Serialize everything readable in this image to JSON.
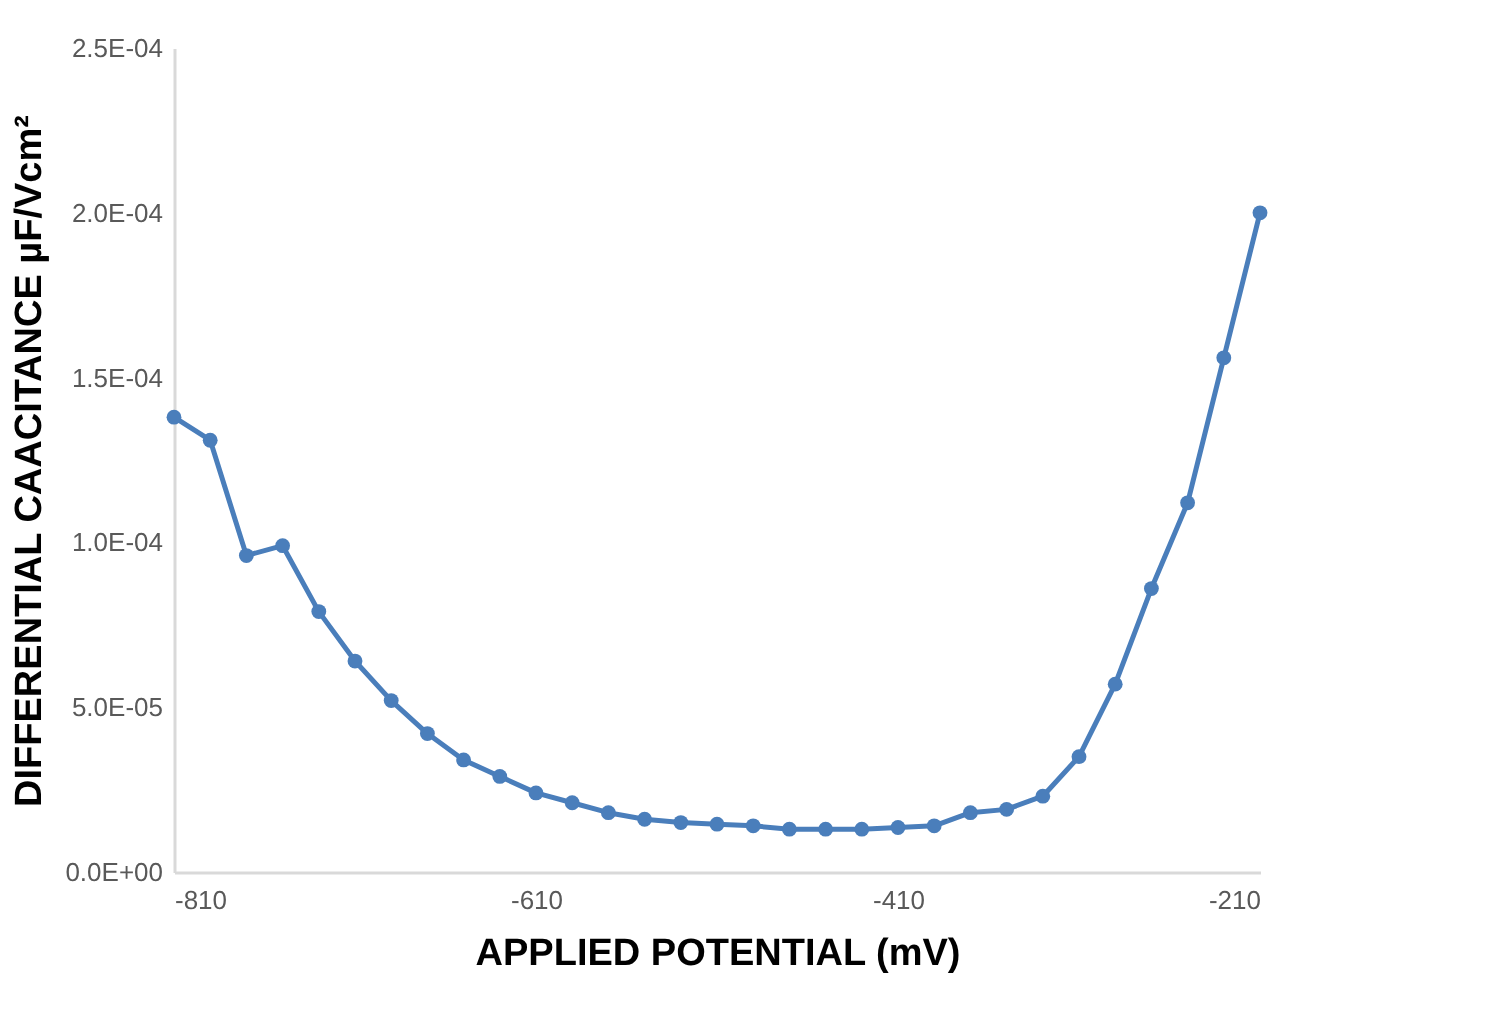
{
  "chart_data": {
    "type": "line",
    "xlabel": "APPLIED POTENTIAL (mV)",
    "ylabel": "DIFFERENTIAL CAACITANCE µF/Vcm²",
    "x": [
      -810,
      -790,
      -770,
      -750,
      -730,
      -710,
      -690,
      -670,
      -650,
      -630,
      -610,
      -590,
      -570,
      -550,
      -530,
      -510,
      -490,
      -470,
      -450,
      -430,
      -410,
      -390,
      -370,
      -350,
      -330,
      -310,
      -290,
      -270,
      -250,
      -230,
      -210
    ],
    "series": [
      {
        "color": "#4a7ebb",
        "values": [
          0.000138,
          0.000131,
          9.6e-05,
          9.9e-05,
          7.9e-05,
          6.4e-05,
          5.2e-05,
          4.2e-05,
          3.4e-05,
          2.9e-05,
          2.4e-05,
          2.1e-05,
          1.8e-05,
          1.6e-05,
          1.5e-05,
          1.45e-05,
          1.4e-05,
          1.3e-05,
          1.3e-05,
          1.3e-05,
          1.35e-05,
          1.4e-05,
          1.8e-05,
          1.9e-05,
          2.3e-05,
          3.5e-05,
          5.7e-05,
          8.6e-05,
          0.000112,
          0.000156,
          0.0002
        ]
      }
    ],
    "xlim": [
      -810,
      -210
    ],
    "xticks": [
      -810,
      -610,
      -410,
      -210
    ],
    "ylim": [
      0,
      0.00025
    ],
    "yticks": [
      {
        "value": 0,
        "label": "0.0E+00"
      },
      {
        "value": 5e-05,
        "label": "5.0E-05"
      },
      {
        "value": 0.0001,
        "label": "1.0E-04"
      },
      {
        "value": 0.00015,
        "label": "1.5E-04"
      },
      {
        "value": 0.0002,
        "label": "2.0E-04"
      },
      {
        "value": 0.00025,
        "label": "2.5E-04"
      }
    ],
    "grid": false,
    "legend": false,
    "marker": "circle",
    "line_style": "solid"
  }
}
